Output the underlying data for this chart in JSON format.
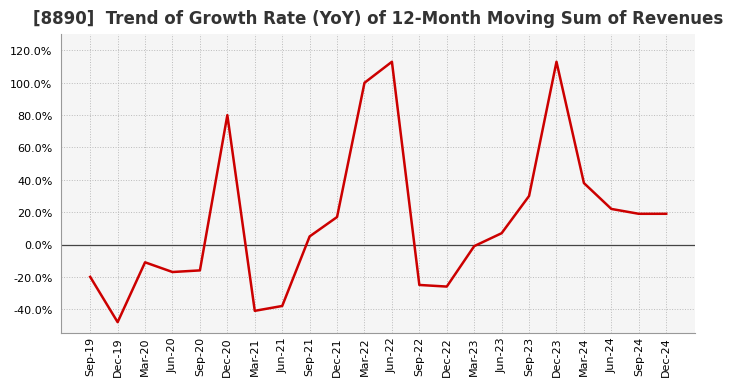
{
  "title": "[8890]  Trend of Growth Rate (YoY) of 12-Month Moving Sum of Revenues",
  "labels": [
    "Sep-19",
    "Dec-19",
    "Mar-20",
    "Jun-20",
    "Sep-20",
    "Dec-20",
    "Mar-21",
    "Jun-21",
    "Sep-21",
    "Dec-21",
    "Mar-22",
    "Jun-22",
    "Sep-22",
    "Dec-22",
    "Mar-23",
    "Jun-23",
    "Sep-23",
    "Dec-23",
    "Mar-24",
    "Jun-24",
    "Sep-24",
    "Dec-24"
  ],
  "values": [
    -20.0,
    -48.0,
    -11.0,
    -17.0,
    -16.0,
    80.0,
    -41.0,
    -38.0,
    5.0,
    17.0,
    100.0,
    113.0,
    -25.0,
    -26.0,
    -1.0,
    7.0,
    30.0,
    113.0,
    38.0,
    22.0,
    19.0,
    19.0
  ],
  "line_color": "#cc0000",
  "line_width": 1.8,
  "ylim": [
    -55,
    130
  ],
  "yticks": [
    -40.0,
    -20.0,
    0.0,
    20.0,
    40.0,
    60.0,
    80.0,
    100.0,
    120.0
  ],
  "background_color": "#ffffff",
  "plot_bg_color": "#f5f5f5",
  "grid_color": "#bbbbbb",
  "title_fontsize": 12,
  "tick_fontsize": 8,
  "zero_line_color": "#444444"
}
